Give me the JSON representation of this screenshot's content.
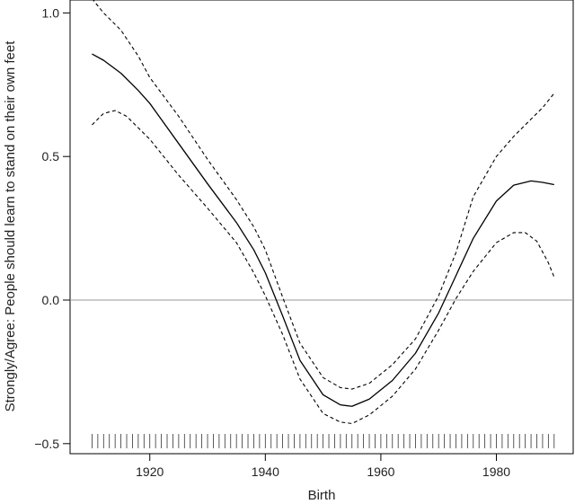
{
  "chart_data": {
    "type": "line",
    "title": "",
    "xlabel": "Birth",
    "ylabel": "Strongly/Agree: People should learn to stand on their own feet",
    "xlim": [
      1906.2,
      1993.3
    ],
    "ylim": [
      -0.535,
      1.045
    ],
    "grid": false,
    "legend": "none",
    "xticks": [
      1920,
      1940,
      1960,
      1980
    ],
    "yticks": [
      -0.5,
      0.0,
      0.5,
      1.0
    ],
    "ytick_labels": [
      "−0.5",
      "0.0",
      "0.5",
      "1.0"
    ],
    "reference_line_y": 0.0,
    "rug_x_range": [
      1910,
      1990
    ],
    "rug_step": 1,
    "colors": {
      "line": "#000000",
      "reference": "#999999",
      "axes": "#000000"
    },
    "series": [
      {
        "style": "solid",
        "x": [
          1910,
          1912,
          1915,
          1918,
          1920,
          1925,
          1930,
          1935,
          1938,
          1940,
          1943,
          1946,
          1950,
          1953,
          1955,
          1958,
          1962,
          1966,
          1970,
          1973,
          1976,
          1980,
          1983,
          1986,
          1988,
          1990
        ],
        "y": [
          0.857,
          0.835,
          0.79,
          0.73,
          0.685,
          0.545,
          0.405,
          0.27,
          0.175,
          0.095,
          -0.055,
          -0.21,
          -0.33,
          -0.365,
          -0.37,
          -0.345,
          -0.28,
          -0.185,
          -0.045,
          0.085,
          0.215,
          0.345,
          0.4,
          0.415,
          0.41,
          0.402
        ]
      },
      {
        "style": "dashed",
        "x": [
          1910,
          1912,
          1915,
          1918,
          1920,
          1925,
          1930,
          1935,
          1938,
          1940,
          1943,
          1946,
          1950,
          1953,
          1955,
          1958,
          1962,
          1966,
          1970,
          1973,
          1976,
          1980,
          1983,
          1986,
          1988,
          1990
        ],
        "y": [
          1.05,
          1.0,
          0.94,
          0.85,
          0.775,
          0.64,
          0.49,
          0.35,
          0.255,
          0.175,
          0.01,
          -0.15,
          -0.27,
          -0.305,
          -0.31,
          -0.29,
          -0.225,
          -0.135,
          0.015,
          0.165,
          0.36,
          0.5,
          0.57,
          0.63,
          0.67,
          0.72
        ]
      },
      {
        "style": "dashed",
        "x": [
          1910,
          1912,
          1914,
          1916,
          1918,
          1920,
          1925,
          1930,
          1935,
          1938,
          1940,
          1943,
          1946,
          1950,
          1953,
          1955,
          1958,
          1962,
          1966,
          1970,
          1973,
          1976,
          1980,
          1983,
          1985,
          1987,
          1989,
          1990
        ],
        "y": [
          0.61,
          0.65,
          0.66,
          0.64,
          0.6,
          0.56,
          0.435,
          0.32,
          0.2,
          0.095,
          0.015,
          -0.12,
          -0.275,
          -0.395,
          -0.425,
          -0.43,
          -0.4,
          -0.335,
          -0.24,
          -0.105,
          0.005,
          0.1,
          0.2,
          0.235,
          0.235,
          0.205,
          0.13,
          0.08
        ]
      }
    ]
  }
}
